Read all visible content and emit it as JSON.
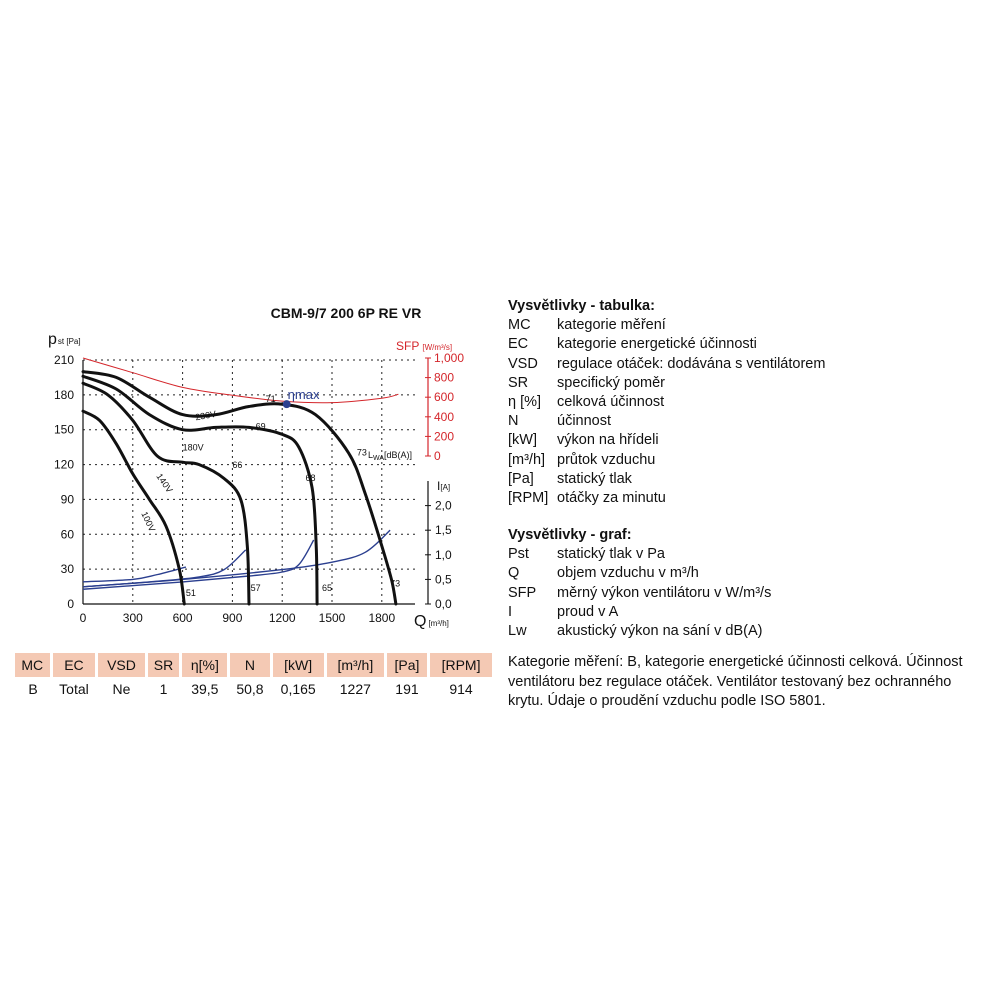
{
  "chart_data": {
    "type": "line",
    "title": "CBM-9/7 200 6P RE VR",
    "xlabel": "Q",
    "xunit": "[m³/h]",
    "x_ticks": [
      "0",
      "300",
      "600",
      "900",
      "1200",
      "1500",
      "1800"
    ],
    "xlim": [
      0,
      2000
    ],
    "ylabel": "p",
    "ylabel_sub": "st [Pa]",
    "y_ticks": [
      "0",
      "30",
      "60",
      "90",
      "120",
      "150",
      "180",
      "210"
    ],
    "ylim": [
      0,
      210
    ],
    "sfp_label": "SFP",
    "sfp_unit": "[W/m³/s]",
    "sfp_ticks": [
      "0",
      "200",
      "400",
      "600",
      "800",
      "1,000"
    ],
    "sfp_lim": [
      0,
      1000
    ],
    "current_label": "I",
    "current_unit": "[A]",
    "current_ticks": [
      "0,0",
      "0,5",
      "1,0",
      "1,5",
      "2,0"
    ],
    "current_lim": [
      0,
      2.5
    ],
    "lwa_label": "L",
    "lwa_label_sub": "WA",
    "lwa_unit": "[dB(A)]",
    "eta_label": "ηmax",
    "eta_point": {
      "x": 1227,
      "y": 172
    },
    "pressure_curves": [
      {
        "name": "230V",
        "points": [
          [
            0,
            200
          ],
          [
            200,
            195
          ],
          [
            400,
            178
          ],
          [
            600,
            163
          ],
          [
            800,
            163
          ],
          [
            1000,
            170
          ],
          [
            1200,
            172
          ],
          [
            1400,
            163
          ],
          [
            1600,
            130
          ],
          [
            1700,
            95
          ],
          [
            1800,
            50
          ],
          [
            1860,
            20
          ],
          [
            1885,
            0
          ]
        ]
      },
      {
        "name": "180V",
        "points": [
          [
            0,
            196
          ],
          [
            200,
            185
          ],
          [
            400,
            163
          ],
          [
            600,
            150
          ],
          [
            800,
            152
          ],
          [
            1000,
            152
          ],
          [
            1200,
            146
          ],
          [
            1300,
            135
          ],
          [
            1380,
            100
          ],
          [
            1405,
            50
          ],
          [
            1410,
            0
          ]
        ]
      },
      {
        "name": "140V",
        "points": [
          [
            0,
            190
          ],
          [
            150,
            180
          ],
          [
            300,
            158
          ],
          [
            450,
            127
          ],
          [
            600,
            122
          ],
          [
            700,
            120
          ],
          [
            850,
            108
          ],
          [
            950,
            90
          ],
          [
            990,
            50
          ],
          [
            1000,
            0
          ]
        ]
      },
      {
        "name": "100V",
        "points": [
          [
            0,
            166
          ],
          [
            100,
            158
          ],
          [
            200,
            138
          ],
          [
            300,
            112
          ],
          [
            400,
            90
          ],
          [
            500,
            67
          ],
          [
            580,
            30
          ],
          [
            610,
            0
          ]
        ]
      }
    ],
    "current_curves": [
      {
        "name": "230V",
        "points": [
          [
            0,
            0.35
          ],
          [
            600,
            0.5
          ],
          [
            1200,
            0.7
          ],
          [
            1500,
            0.85
          ],
          [
            1700,
            1.05
          ],
          [
            1850,
            1.5
          ]
        ]
      },
      {
        "name": "180V",
        "points": [
          [
            0,
            0.3
          ],
          [
            600,
            0.45
          ],
          [
            1000,
            0.57
          ],
          [
            1200,
            0.65
          ],
          [
            1300,
            0.8
          ],
          [
            1390,
            1.3
          ]
        ]
      },
      {
        "name": "140V",
        "points": [
          [
            0,
            0.35
          ],
          [
            400,
            0.45
          ],
          [
            700,
            0.55
          ],
          [
            850,
            0.7
          ],
          [
            980,
            1.1
          ]
        ]
      },
      {
        "name": "100V",
        "points": [
          [
            0,
            0.45
          ],
          [
            300,
            0.5
          ],
          [
            450,
            0.6
          ],
          [
            620,
            0.75
          ]
        ]
      }
    ],
    "sfp_curve": {
      "points": [
        [
          0,
          1000
        ],
        [
          300,
          850
        ],
        [
          600,
          700
        ],
        [
          900,
          620
        ],
        [
          1200,
          560
        ],
        [
          1500,
          545
        ],
        [
          1800,
          590
        ],
        [
          1900,
          630
        ]
      ]
    },
    "curve_labels": [
      {
        "text": "230V",
        "x": 680,
        "y": 158,
        "rot": -10
      },
      {
        "text": "180V",
        "x": 600,
        "y": 132,
        "rot": 0
      },
      {
        "text": "140V",
        "x": 440,
        "y": 110,
        "rot": 55
      },
      {
        "text": "100V",
        "x": 350,
        "y": 78,
        "rot": 65
      },
      {
        "text": "71",
        "x": 1100,
        "y": 174,
        "rot": 0
      },
      {
        "text": "69",
        "x": 1040,
        "y": 150,
        "rot": 0
      },
      {
        "text": "66",
        "x": 900,
        "y": 117,
        "rot": 0
      },
      {
        "text": "68",
        "x": 1340,
        "y": 106,
        "rot": 0
      },
      {
        "text": "73",
        "x": 1850,
        "y": 15,
        "rot": 0
      },
      {
        "text": "65",
        "x": 1440,
        "y": 11,
        "rot": 0
      },
      {
        "text": "57",
        "x": 1010,
        "y": 11,
        "rot": 0
      },
      {
        "text": "51",
        "x": 620,
        "y": 7,
        "rot": 0
      },
      {
        "text": "73",
        "x": 1650,
        "y": 128,
        "rot": 0
      }
    ],
    "colors": {
      "pressure": "#111111",
      "current": "#2b3f8f",
      "sfp": "#d4262b",
      "eta_point": "#2b3f8f"
    }
  },
  "table": {
    "headers": [
      "MC",
      "EC",
      "VSD",
      "SR",
      "η[%]",
      "N",
      "[kW]",
      "[m³/h]",
      "[Pa]",
      "[RPM]"
    ],
    "values": [
      "B",
      "Total",
      "Ne",
      "1",
      "39,5",
      "50,8",
      "0,165",
      "1227",
      "191",
      "914"
    ]
  },
  "legend_table": {
    "title": "Vysvětlivky - tabulka:",
    "items": [
      {
        "key": "MC",
        "desc": "kategorie měření"
      },
      {
        "key": "EC",
        "desc": "kategorie energetické účinnosti"
      },
      {
        "key": "VSD",
        "desc": "regulace otáček: dodávána s ventilátorem"
      },
      {
        "key": "SR",
        "desc": "specifický poměr"
      },
      {
        "key": "η [%]",
        "desc": "celková účinnost"
      },
      {
        "key": "N",
        "desc": "účinnost"
      },
      {
        "key": "[kW]",
        "desc": "výkon na hřídeli"
      },
      {
        "key": "[m³/h]",
        "desc": "průtok vzduchu"
      },
      {
        "key": "[Pa]",
        "desc": "statický tlak"
      },
      {
        "key": "[RPM]",
        "desc": "otáčky za minutu"
      }
    ]
  },
  "legend_graph": {
    "title": "Vysvětlivky - graf:",
    "items": [
      {
        "key": "Pst",
        "desc": "statický tlak v Pa"
      },
      {
        "key": "Q",
        "desc": "objem vzduchu v m³/h"
      },
      {
        "key": "SFP",
        "desc": "měrný výkon ventilátoru v W/m³/s"
      },
      {
        "key": "I",
        "desc": "proud v A"
      },
      {
        "key": "Lw",
        "desc": "akustický výkon na sání v dB(A)"
      }
    ]
  },
  "note": "Kategorie měření: B, kategorie energetické účinnosti celková. Účinnost ventilátoru bez regulace otáček. Ventilátor testovaný bez ochranného krytu. Údaje o proudění vzduchu podle ISO 5801."
}
